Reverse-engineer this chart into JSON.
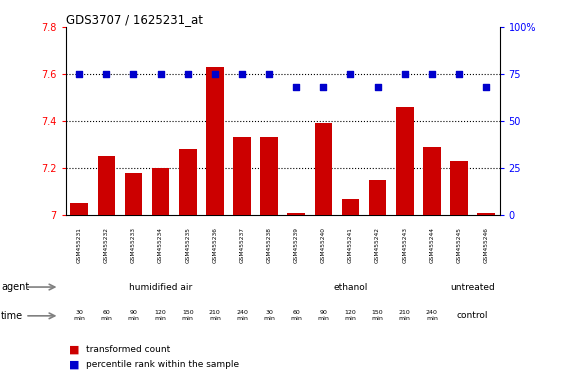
{
  "title": "GDS3707 / 1625231_at",
  "samples": [
    "GSM455231",
    "GSM455232",
    "GSM455233",
    "GSM455234",
    "GSM455235",
    "GSM455236",
    "GSM455237",
    "GSM455238",
    "GSM455239",
    "GSM455240",
    "GSM455241",
    "GSM455242",
    "GSM455243",
    "GSM455244",
    "GSM455245",
    "GSM455246"
  ],
  "red_values": [
    7.05,
    7.25,
    7.18,
    7.2,
    7.28,
    7.63,
    7.33,
    7.33,
    7.01,
    7.39,
    7.07,
    7.15,
    7.46,
    7.29,
    7.23,
    7.01
  ],
  "blue_values": [
    75,
    75,
    75,
    75,
    75,
    75,
    75,
    75,
    68,
    68,
    75,
    68,
    75,
    75,
    75,
    68
  ],
  "ylim_left": [
    7.0,
    7.8
  ],
  "ylim_right": [
    0,
    100
  ],
  "yticks_left": [
    7.0,
    7.2,
    7.4,
    7.6,
    7.8
  ],
  "ytick_labels_left": [
    "7",
    "7.2",
    "7.4",
    "7.6",
    "7.8"
  ],
  "yticks_right": [
    0,
    25,
    50,
    75,
    100
  ],
  "ytick_labels_right": [
    "0",
    "25",
    "50",
    "75",
    "100%"
  ],
  "agent_groups": [
    {
      "label": "humidified air",
      "start": 0,
      "end": 7,
      "color": "#ccffcc"
    },
    {
      "label": "ethanol",
      "start": 7,
      "end": 14,
      "color": "#55ee55"
    },
    {
      "label": "untreated",
      "start": 14,
      "end": 16,
      "color": "#88ff88"
    }
  ],
  "time_labels_14": [
    "30\nmin",
    "60\nmin",
    "90\nmin",
    "120\nmin",
    "150\nmin",
    "210\nmin",
    "240\nmin",
    "30\nmin",
    "60\nmin",
    "90\nmin",
    "120\nmin",
    "150\nmin",
    "210\nmin",
    "240\nmin"
  ],
  "time_colors_14": [
    "#ffaaff",
    "#ffaaff",
    "#ffaaff",
    "#ff77ff",
    "#ff77ff",
    "#ff77ff",
    "#ff77ff",
    "#ffaaff",
    "#ffaaff",
    "#ffaaff",
    "#ff77ff",
    "#ff77ff",
    "#ff77ff",
    "#ff77ff"
  ],
  "control_label": "control",
  "control_color": "#ffddff",
  "bar_color": "#cc0000",
  "dot_color": "#0000cc",
  "sample_bg": "#cccccc",
  "dotted_lines": [
    7.2,
    7.4,
    7.6
  ]
}
